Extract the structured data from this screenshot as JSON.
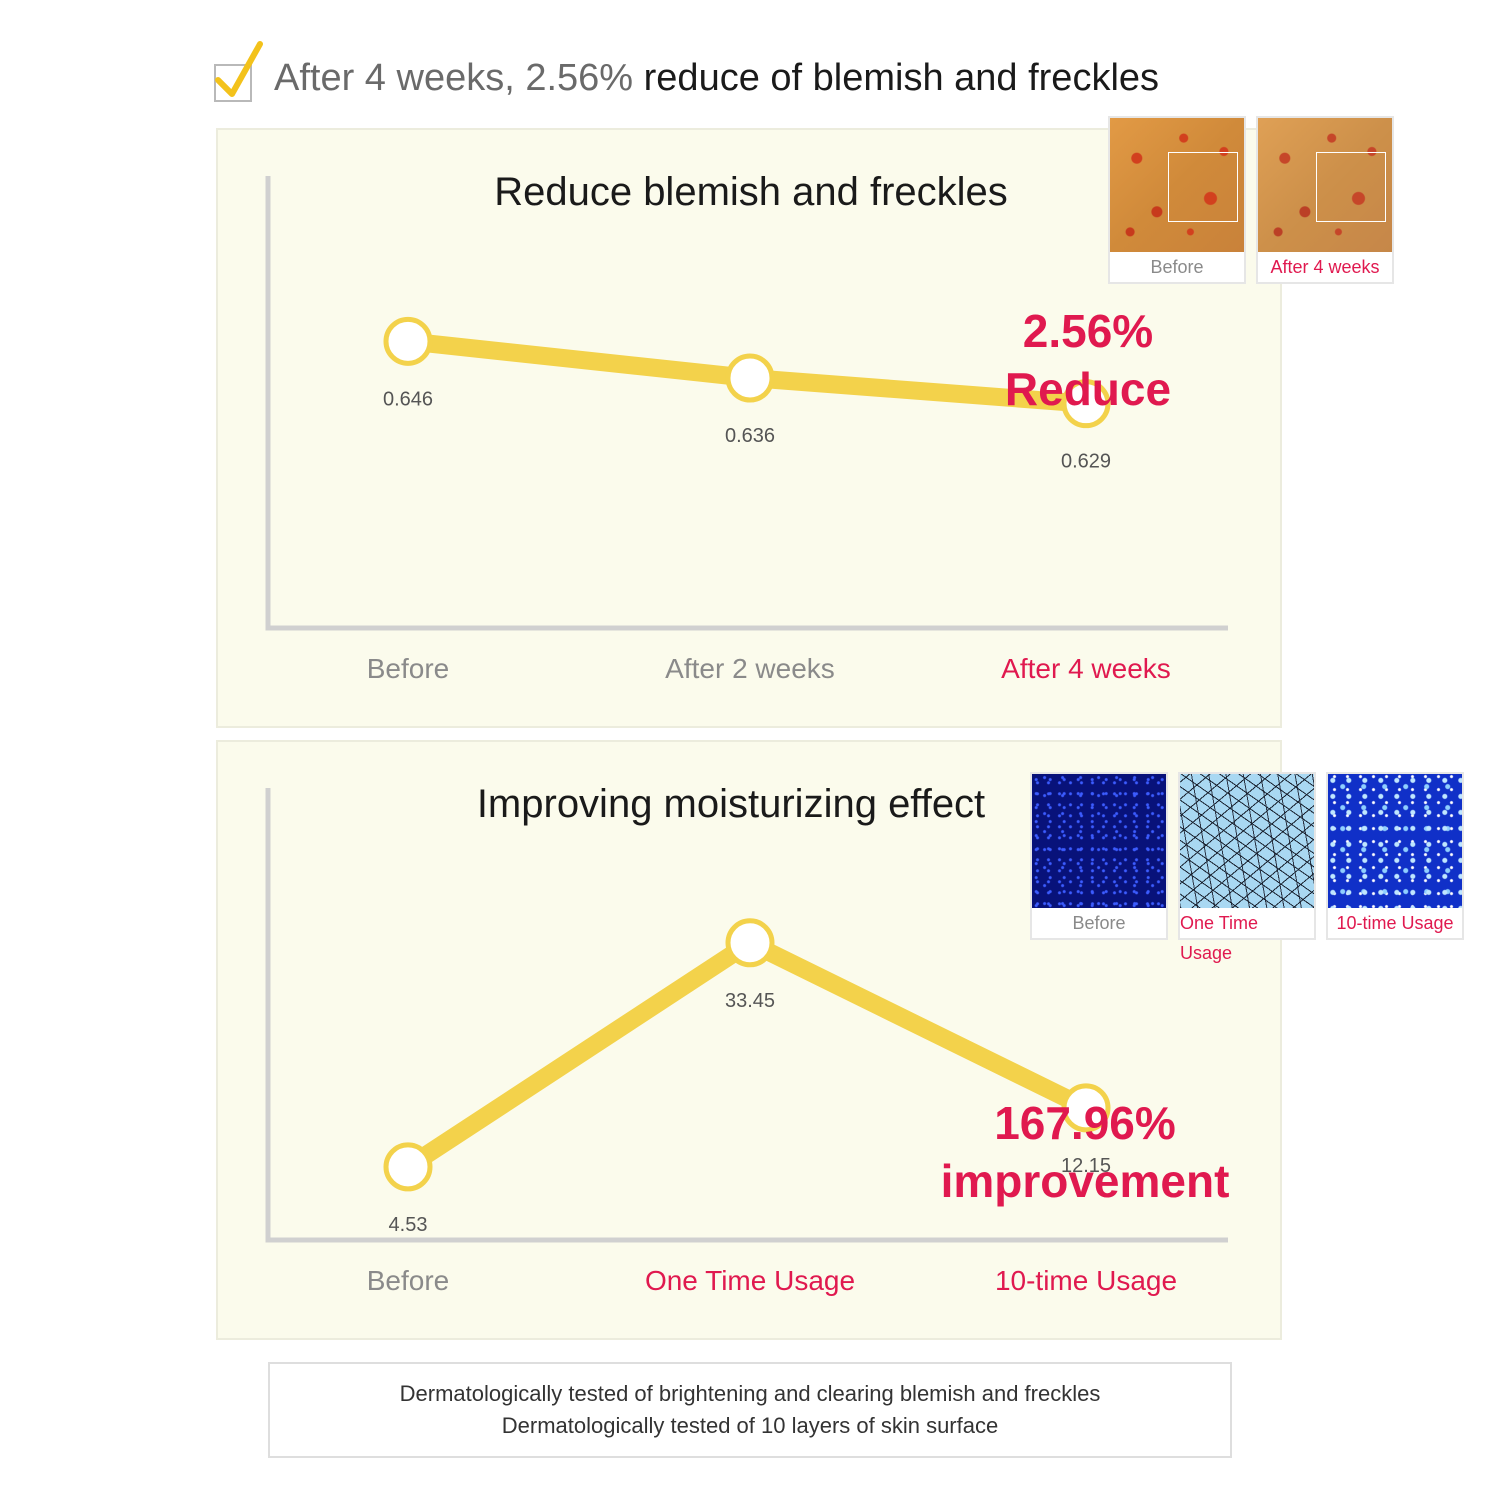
{
  "headline": {
    "light_text": "After 4 weeks, 2.56% ",
    "strong_text": "reduce of blemish and freckles",
    "check_icon": "checkbox-check-icon"
  },
  "colors": {
    "line": "#f3d24b",
    "accent": "#e0194f",
    "panel_bg": "#fbfbec",
    "axis": "#d0d0d0",
    "label_grey": "#8a8a8a",
    "value_text": "#555555"
  },
  "chart_data": [
    {
      "type": "line",
      "title": "Reduce blemish and freckles",
      "categories": [
        "Before",
        "After 2 weeks",
        "After 4 weeks"
      ],
      "category_colors": [
        "#8a8a8a",
        "#8a8a8a",
        "#e0194f"
      ],
      "values": [
        0.646,
        0.636,
        0.629
      ],
      "value_labels": [
        "0.646",
        "0.636",
        "0.629"
      ],
      "ylim": [
        0.6,
        0.66
      ],
      "callout": [
        "2.56%",
        "Reduce"
      ],
      "photos": [
        {
          "caption": "Before",
          "style": "grey"
        },
        {
          "caption": "After 4 weeks",
          "style": "red"
        }
      ]
    },
    {
      "type": "line",
      "title": "Improving moisturizing effect",
      "categories": [
        "Before",
        "One Time Usage",
        "10-time Usage"
      ],
      "category_colors": [
        "#8a8a8a",
        "#e0194f",
        "#e0194f"
      ],
      "values": [
        4.53,
        33.45,
        12.15
      ],
      "value_labels": [
        "4.53",
        "33.45",
        "12.15"
      ],
      "ylim": [
        0,
        40
      ],
      "callout": [
        "167.96%",
        "improvement"
      ],
      "photos": [
        {
          "caption": "Before",
          "style": "grey"
        },
        {
          "caption": "One Time Usage",
          "style": "red"
        },
        {
          "caption": "10-time Usage",
          "style": "red"
        }
      ]
    }
  ],
  "footer": {
    "line1": "Dermatologically tested of brightening and clearing blemish and freckles",
    "line2": "Dermatologically tested of 10 layers of skin surface"
  }
}
